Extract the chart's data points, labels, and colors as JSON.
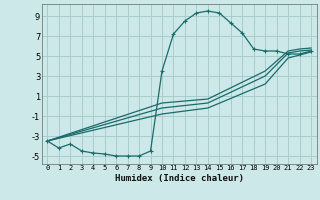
{
  "xlabel": "Humidex (Indice chaleur)",
  "background_color": "#cce8e8",
  "grid_color": "#aacccc",
  "line_color": "#1a6b6b",
  "xlim": [
    -0.5,
    23.5
  ],
  "ylim": [
    -5.8,
    10.2
  ],
  "yticks": [
    -5,
    -3,
    -1,
    1,
    3,
    5,
    7,
    9
  ],
  "xticks": [
    0,
    1,
    2,
    3,
    4,
    5,
    6,
    7,
    8,
    9,
    10,
    11,
    12,
    13,
    14,
    15,
    16,
    17,
    18,
    19,
    20,
    21,
    22,
    23
  ],
  "bell_x": [
    0,
    1,
    2,
    3,
    4,
    5,
    6,
    7,
    8,
    9,
    10,
    11,
    12,
    13,
    14,
    15,
    16,
    17,
    18,
    19,
    20,
    21,
    22,
    23
  ],
  "bell_y": [
    -3.5,
    -4.2,
    -3.8,
    -4.5,
    -4.7,
    -4.8,
    -5.0,
    -5.0,
    -5.0,
    -4.5,
    3.5,
    7.2,
    8.5,
    9.3,
    9.5,
    9.3,
    8.3,
    7.3,
    5.7,
    5.5,
    5.5,
    5.2,
    5.2,
    5.5
  ],
  "line1_x": [
    0,
    10,
    14,
    19,
    21,
    22,
    23
  ],
  "line1_y": [
    -3.5,
    0.3,
    0.7,
    3.5,
    5.5,
    5.7,
    5.8
  ],
  "line2_x": [
    0,
    10,
    14,
    19,
    21,
    22,
    23
  ],
  "line2_y": [
    -3.5,
    -0.2,
    0.3,
    3.0,
    5.3,
    5.5,
    5.6
  ],
  "line3_x": [
    0,
    10,
    14,
    19,
    21,
    22,
    23
  ],
  "line3_y": [
    -3.5,
    -0.8,
    -0.2,
    2.2,
    4.8,
    5.1,
    5.4
  ]
}
